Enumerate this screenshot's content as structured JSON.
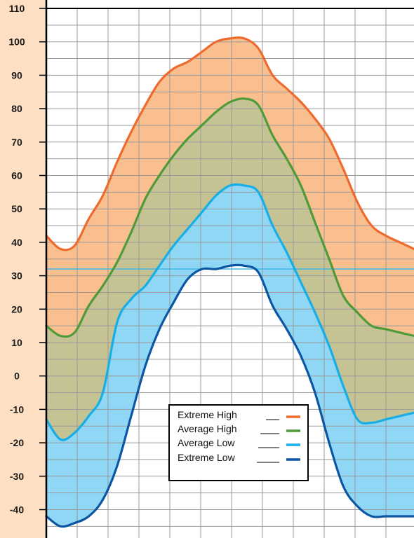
{
  "chart_data": {
    "type": "area",
    "title": "",
    "xlabel": "",
    "ylabel": "",
    "ylim": [
      -50,
      110
    ],
    "yticks": [
      110,
      100,
      90,
      80,
      70,
      60,
      50,
      40,
      30,
      20,
      10,
      0,
      -10,
      -20,
      -30,
      -40
    ],
    "x": [
      0,
      1,
      2,
      3,
      4,
      5,
      6,
      7,
      8,
      9,
      10,
      11,
      12,
      13,
      14,
      15,
      16,
      17,
      18,
      19,
      20,
      21,
      22,
      23,
      24,
      25,
      26
    ],
    "grid": true,
    "reference_line": 32,
    "colors": {
      "axis_panel": "#fde0c4",
      "band_high": "#f9bf8e",
      "band_mid": "#c5c394",
      "band_low": "#8fd7f5",
      "grid": "#9a9a9a",
      "reference_line": "#3fb6e8"
    },
    "series": [
      {
        "name": "Extreme High",
        "color": "#ef6a2e",
        "values": [
          42,
          38,
          39,
          47,
          54,
          64,
          73,
          81,
          88,
          92,
          94,
          97,
          100,
          101,
          101,
          98,
          90,
          86,
          82,
          77,
          71,
          62,
          52,
          45,
          42,
          40,
          38
        ]
      },
      {
        "name": "Average High",
        "color": "#4f9a39",
        "values": [
          15,
          12,
          13,
          21,
          27,
          34,
          43,
          53,
          60,
          66,
          71,
          75,
          79,
          82,
          83,
          81,
          72,
          65,
          57,
          46,
          35,
          24,
          19,
          15,
          14,
          13,
          12
        ]
      },
      {
        "name": "Average Low",
        "color": "#16aee6",
        "values": [
          -13,
          -19,
          -17,
          -12,
          -5,
          16,
          23,
          27,
          33,
          39,
          44,
          49,
          54,
          57,
          57,
          55,
          45,
          37,
          28,
          19,
          9,
          -3,
          -13,
          -14,
          -13,
          -12,
          -11
        ]
      },
      {
        "name": "Extreme Low",
        "color": "#0a56a4",
        "values": [
          -42,
          -45,
          -44,
          -42,
          -37,
          -27,
          -12,
          3,
          14,
          22,
          29,
          32,
          32,
          33,
          33,
          31,
          21,
          14,
          6,
          -5,
          -20,
          -33,
          -39,
          -42,
          -42,
          -42,
          -42
        ]
      }
    ]
  }
}
